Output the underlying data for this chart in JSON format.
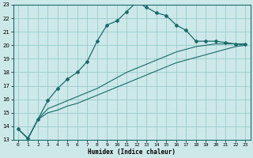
{
  "xlabel": "Humidex (Indice chaleur)",
  "bg_color": "#cce8e8",
  "grid_color": "#99cccc",
  "line_color": "#1a6b6b",
  "xlim": [
    -0.5,
    23.5
  ],
  "ylim": [
    13,
    23
  ],
  "xticks": [
    0,
    1,
    2,
    3,
    4,
    5,
    6,
    7,
    8,
    9,
    10,
    11,
    12,
    13,
    14,
    15,
    16,
    17,
    18,
    19,
    20,
    21,
    22,
    23
  ],
  "yticks": [
    13,
    14,
    15,
    16,
    17,
    18,
    19,
    20,
    21,
    22,
    23
  ],
  "line1_x": [
    0,
    1,
    2,
    3,
    4,
    5,
    6,
    7,
    8,
    9,
    10,
    11,
    12,
    13,
    14,
    15,
    16,
    17,
    18,
    19,
    20,
    21,
    22,
    23
  ],
  "line1_y": [
    13.8,
    13.1,
    14.5,
    15.9,
    16.8,
    17.5,
    18.0,
    18.8,
    20.3,
    21.5,
    21.8,
    22.5,
    23.2,
    22.8,
    22.4,
    22.2,
    21.5,
    21.1,
    20.3,
    20.3,
    20.3,
    20.2,
    20.1,
    20.1
  ],
  "line2_x": [
    0,
    1,
    2,
    3,
    4,
    5,
    6,
    7,
    8,
    9,
    10,
    11,
    12,
    13,
    14,
    15,
    16,
    17,
    18,
    19,
    20,
    21,
    22,
    23
  ],
  "line2_y": [
    13.8,
    13.1,
    14.5,
    15.0,
    15.2,
    15.5,
    15.7,
    16.0,
    16.3,
    16.6,
    16.9,
    17.2,
    17.5,
    17.8,
    18.1,
    18.4,
    18.7,
    18.9,
    19.1,
    19.3,
    19.5,
    19.7,
    19.9,
    20.0
  ],
  "line3_x": [
    0,
    1,
    2,
    3,
    4,
    5,
    6,
    7,
    8,
    9,
    10,
    11,
    12,
    13,
    14,
    15,
    16,
    17,
    18,
    19,
    20,
    21,
    22,
    23
  ],
  "line3_y": [
    13.8,
    13.1,
    14.5,
    15.3,
    15.6,
    15.9,
    16.2,
    16.5,
    16.8,
    17.2,
    17.6,
    18.0,
    18.3,
    18.6,
    18.9,
    19.2,
    19.5,
    19.7,
    19.9,
    20.0,
    20.1,
    20.1,
    20.1,
    20.0
  ]
}
